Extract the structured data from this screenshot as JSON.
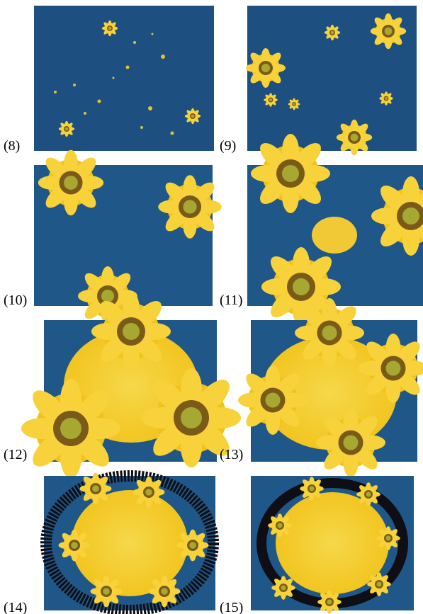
{
  "figure": {
    "panels": [
      {
        "label": "(8)"
      },
      {
        "label": "(9)"
      },
      {
        "label": "(10)"
      },
      {
        "label": "(11)"
      },
      {
        "label": "(12)"
      },
      {
        "label": "(13)"
      },
      {
        "label": "(14)"
      },
      {
        "label": "(15)"
      }
    ]
  }
}
